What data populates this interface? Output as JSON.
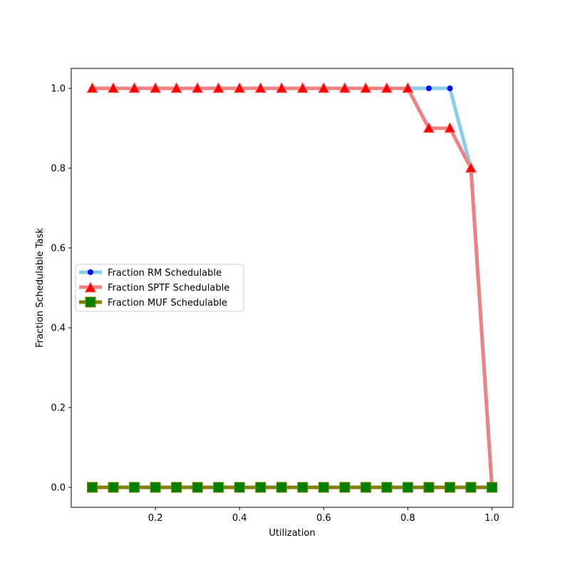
{
  "chart_data": {
    "type": "line",
    "xlabel": "Utilization",
    "ylabel": "Fraction Schedulable Task",
    "xlim": [
      0.0,
      1.05
    ],
    "ylim": [
      -0.05,
      1.05
    ],
    "xticks": [
      "0.2",
      "0.4",
      "0.6",
      "0.8",
      "1.0"
    ],
    "yticks": [
      "0.0",
      "0.2",
      "0.4",
      "0.6",
      "0.8",
      "1.0"
    ],
    "x": [
      0.05,
      0.1,
      0.15,
      0.2,
      0.25,
      0.3,
      0.35,
      0.4,
      0.45,
      0.5,
      0.55,
      0.6,
      0.65,
      0.7,
      0.75,
      0.8,
      0.85,
      0.9,
      0.95,
      1.0
    ],
    "grid": false,
    "legend_position": "center-left",
    "series": [
      {
        "name": "Fraction RM Schedulable",
        "values": [
          1.0,
          1.0,
          1.0,
          1.0,
          1.0,
          1.0,
          1.0,
          1.0,
          1.0,
          1.0,
          1.0,
          1.0,
          1.0,
          1.0,
          1.0,
          1.0,
          1.0,
          1.0,
          0.8,
          0.0
        ],
        "line_color": "#87ceeb",
        "marker": "circle",
        "marker_color": "#0000ff"
      },
      {
        "name": "Fraction SPTF Schedulable",
        "values": [
          1.0,
          1.0,
          1.0,
          1.0,
          1.0,
          1.0,
          1.0,
          1.0,
          1.0,
          1.0,
          1.0,
          1.0,
          1.0,
          1.0,
          1.0,
          1.0,
          0.9,
          0.9,
          0.8,
          0.0
        ],
        "line_color": "#f08080",
        "marker": "triangle",
        "marker_color": "#ff0000"
      },
      {
        "name": "Fraction MUF Schedulable",
        "values": [
          0.0,
          0.0,
          0.0,
          0.0,
          0.0,
          0.0,
          0.0,
          0.0,
          0.0,
          0.0,
          0.0,
          0.0,
          0.0,
          0.0,
          0.0,
          0.0,
          0.0,
          0.0,
          0.0,
          0.0
        ],
        "line_color": "#808000",
        "marker": "square",
        "marker_color": "#008000"
      }
    ]
  }
}
